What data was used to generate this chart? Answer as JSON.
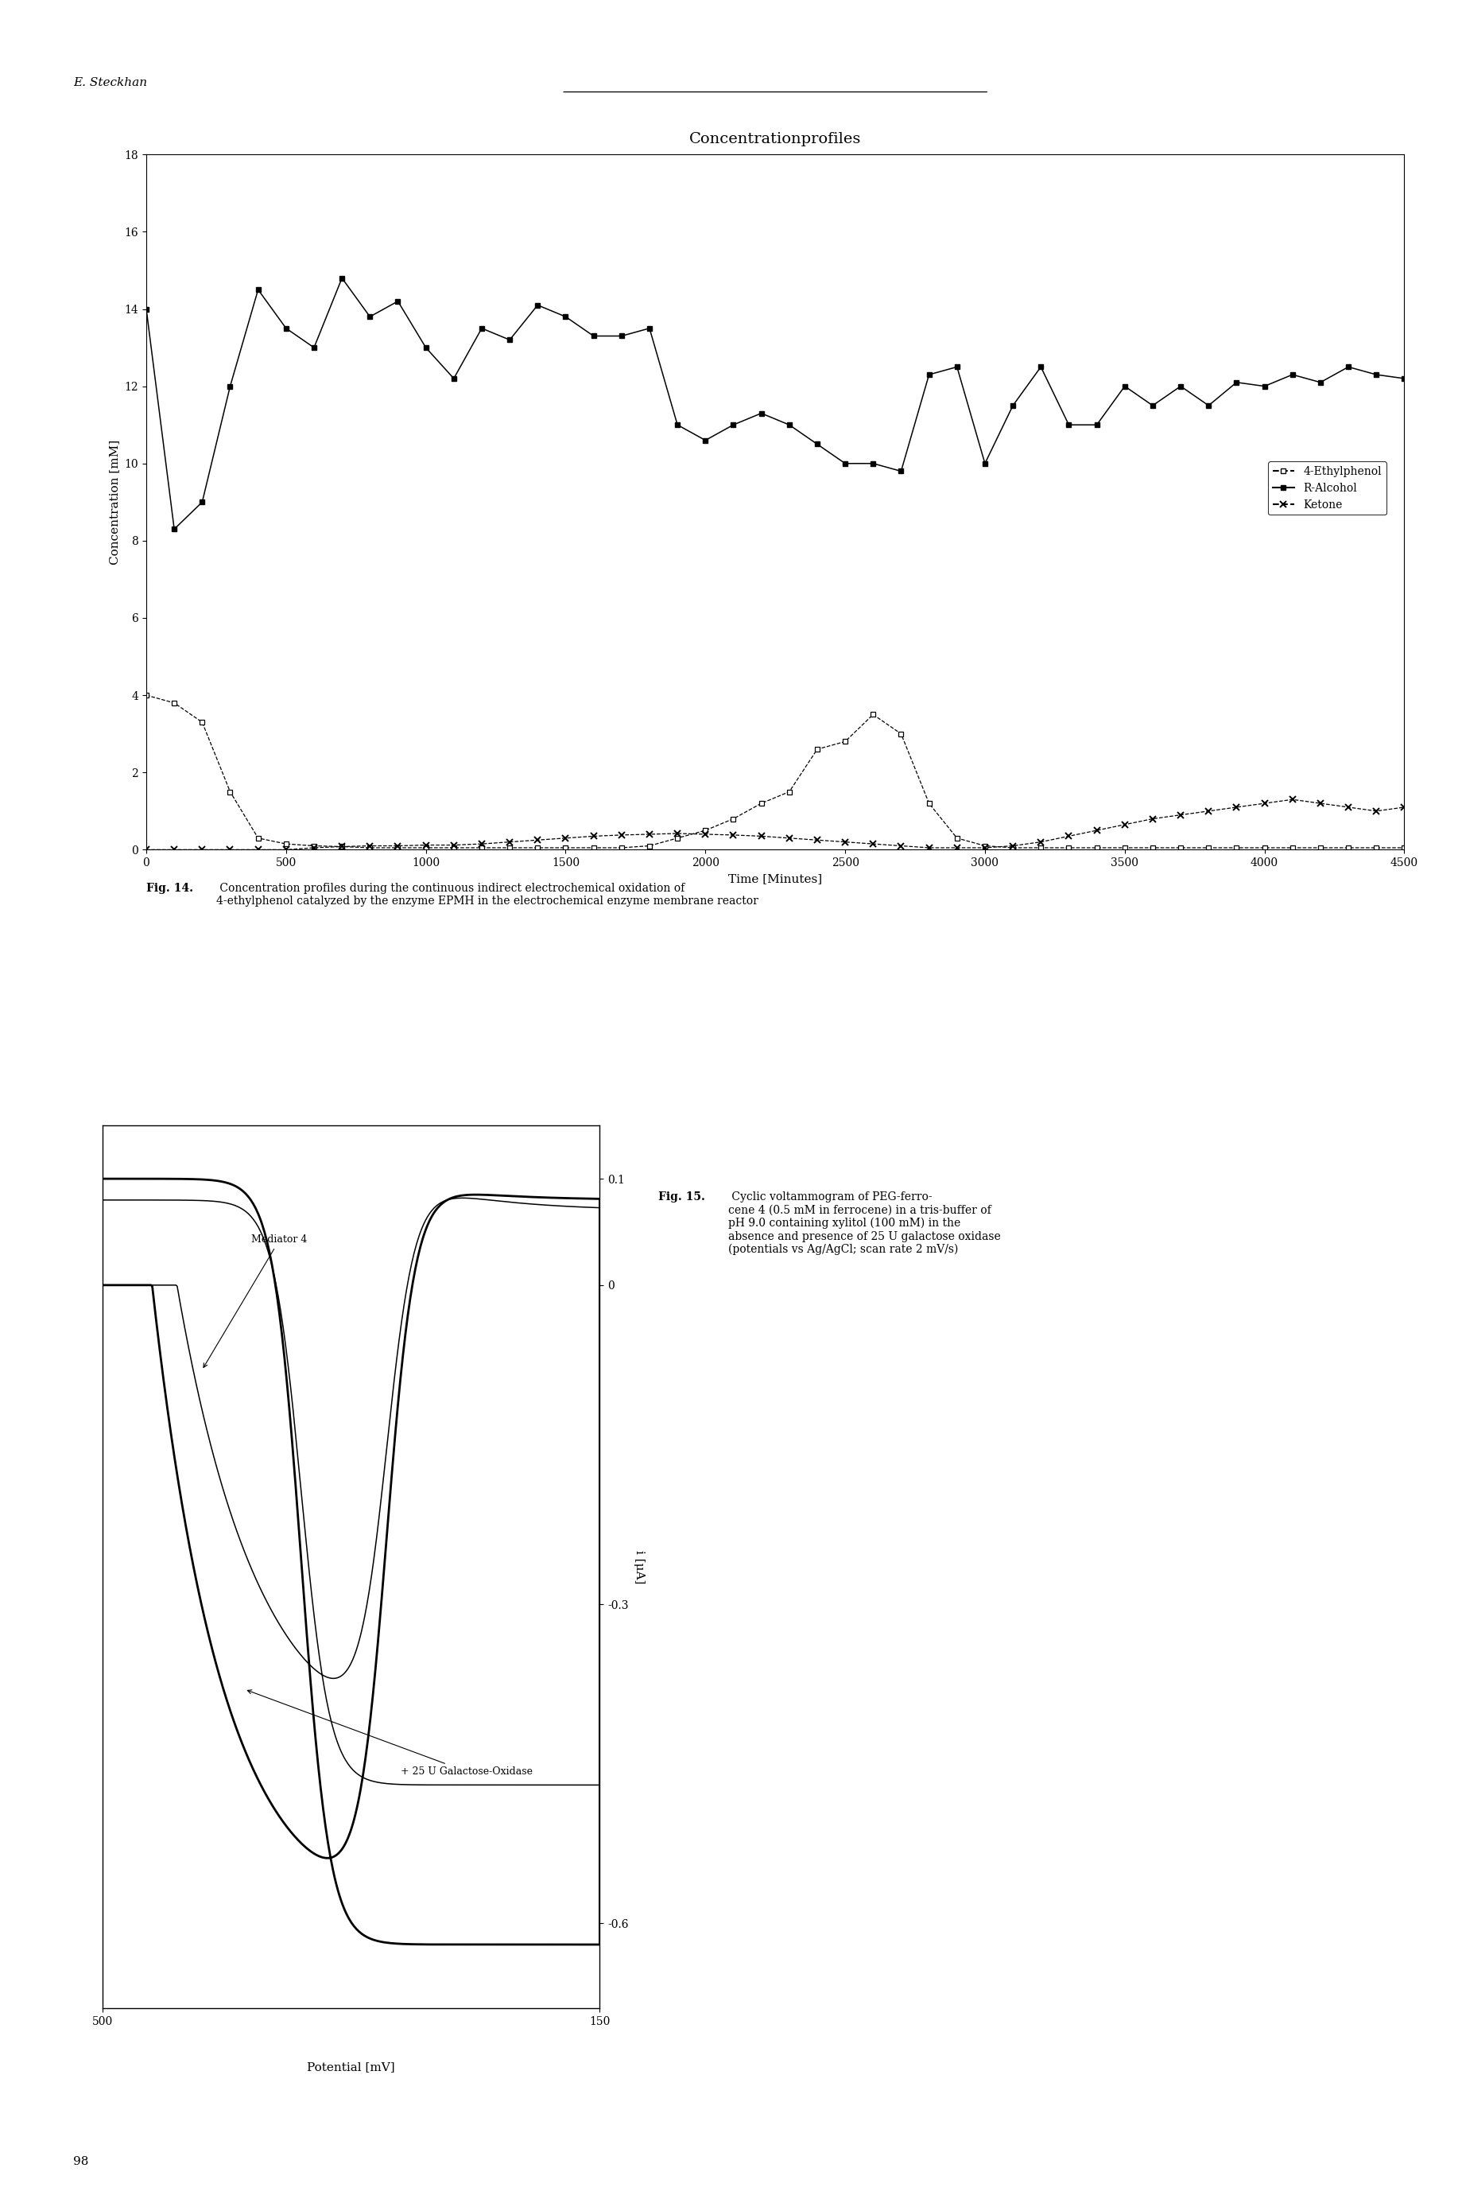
{
  "fig_width": 18.4,
  "fig_height": 27.75,
  "background_color": "#ffffff",
  "header_text": "E. Steckhan",
  "header_fontsize": 11,
  "title1": "Concentrationprofiles",
  "title1_fontsize": 14,
  "ethylphenol_x": [
    0,
    100,
    200,
    300,
    400,
    500,
    600,
    700,
    800,
    900,
    1000,
    1100,
    1200,
    1300,
    1400,
    1500,
    1600,
    1700,
    1800,
    1900,
    2000,
    2100,
    2200,
    2300,
    2400,
    2500,
    2600,
    2700,
    2800,
    2900,
    3000,
    3100,
    3200,
    3300,
    3400,
    3500,
    3600,
    3700,
    3800,
    3900,
    4000,
    4100,
    4200,
    4300,
    4400,
    4500
  ],
  "ethylphenol_y": [
    4.0,
    3.8,
    3.3,
    1.5,
    0.3,
    0.15,
    0.1,
    0.08,
    0.05,
    0.05,
    0.05,
    0.05,
    0.05,
    0.05,
    0.05,
    0.05,
    0.05,
    0.05,
    0.1,
    0.3,
    0.5,
    0.8,
    1.2,
    1.5,
    2.6,
    2.8,
    3.5,
    3.0,
    1.2,
    0.3,
    0.1,
    0.05,
    0.05,
    0.05,
    0.05,
    0.05,
    0.05,
    0.05,
    0.05,
    0.05,
    0.05,
    0.05,
    0.05,
    0.05,
    0.05,
    0.05
  ],
  "r_alcohol_x": [
    0,
    100,
    200,
    300,
    400,
    500,
    600,
    700,
    800,
    900,
    1000,
    1100,
    1200,
    1300,
    1400,
    1500,
    1600,
    1700,
    1800,
    1900,
    2000,
    2100,
    2200,
    2300,
    2400,
    2500,
    2600,
    2700,
    2800,
    2900,
    3000,
    3100,
    3200,
    3300,
    3400,
    3500,
    3600,
    3700,
    3800,
    3900,
    4000,
    4100,
    4200,
    4300,
    4400,
    4500
  ],
  "r_alcohol_y": [
    14.0,
    8.3,
    9.0,
    12.0,
    14.5,
    13.5,
    13.0,
    14.8,
    13.8,
    14.2,
    13.0,
    12.2,
    13.5,
    13.2,
    14.1,
    13.8,
    13.3,
    13.3,
    13.5,
    11.0,
    10.6,
    11.0,
    11.3,
    11.0,
    10.5,
    10.0,
    10.0,
    9.8,
    12.3,
    12.5,
    10.0,
    11.5,
    12.5,
    11.0,
    11.0,
    12.0,
    11.5,
    12.0,
    11.5,
    12.1,
    12.0,
    12.3,
    12.1,
    12.5,
    12.3,
    12.2
  ],
  "ketone_x": [
    0,
    100,
    200,
    300,
    400,
    500,
    600,
    700,
    800,
    900,
    1000,
    1100,
    1200,
    1300,
    1400,
    1500,
    1600,
    1700,
    1800,
    1900,
    2000,
    2100,
    2200,
    2300,
    2400,
    2500,
    2600,
    2700,
    2800,
    2900,
    3000,
    3100,
    3200,
    3300,
    3400,
    3500,
    3600,
    3700,
    3800,
    3900,
    4000,
    4100,
    4200,
    4300,
    4400,
    4500
  ],
  "ketone_y": [
    0.0,
    0.0,
    0.0,
    0.0,
    0.0,
    0.0,
    0.05,
    0.08,
    0.1,
    0.1,
    0.12,
    0.12,
    0.15,
    0.2,
    0.25,
    0.3,
    0.35,
    0.38,
    0.4,
    0.42,
    0.4,
    0.38,
    0.35,
    0.3,
    0.25,
    0.2,
    0.15,
    0.1,
    0.05,
    0.05,
    0.05,
    0.1,
    0.2,
    0.35,
    0.5,
    0.65,
    0.8,
    0.9,
    1.0,
    1.1,
    1.2,
    1.3,
    1.2,
    1.1,
    1.0,
    1.1
  ],
  "xlabel1": "Time [Minutes]",
  "ylabel1": "Concentration [mM]",
  "xlim1": [
    0,
    4500
  ],
  "ylim1": [
    0,
    18
  ],
  "yticks1": [
    0,
    2,
    4,
    6,
    8,
    10,
    12,
    14,
    16,
    18
  ],
  "xticks1": [
    0,
    500,
    1000,
    1500,
    2000,
    2500,
    3000,
    3500,
    4000,
    4500
  ],
  "fig14_caption_bold": "Fig. 14.",
  "fig14_caption_normal": " Concentration profiles during the continuous indirect electrochemical oxidation of\n4-ethylphenol catalyzed by the enzyme ",
  "fig14_caption_bold2": "EPMH",
  "fig14_caption_normal2": " in the electrochemical enzyme membrane reactor",
  "cv_mediator_label": "Mediator 4",
  "cv_enzyme_label": "+ 25 U Galactose-Oxidase",
  "cv_xlabel": "Potential [mV]",
  "cv_ylabel": "i [μA]",
  "fig15_caption_bold": "Fig. 15.",
  "fig15_caption_normal": " Cyclic voltammogram of PEG-ferro-\ncene 4 (0.5 mM in ferrocene) in a tris-buffer of\npH 9.0 containing xylitol (100 mM) in the\nabsence and presence of 25 U galactose oxidase\n(potentials vs Ag/AgCl; scan rate 2 mV/s)",
  "page_number": "98"
}
